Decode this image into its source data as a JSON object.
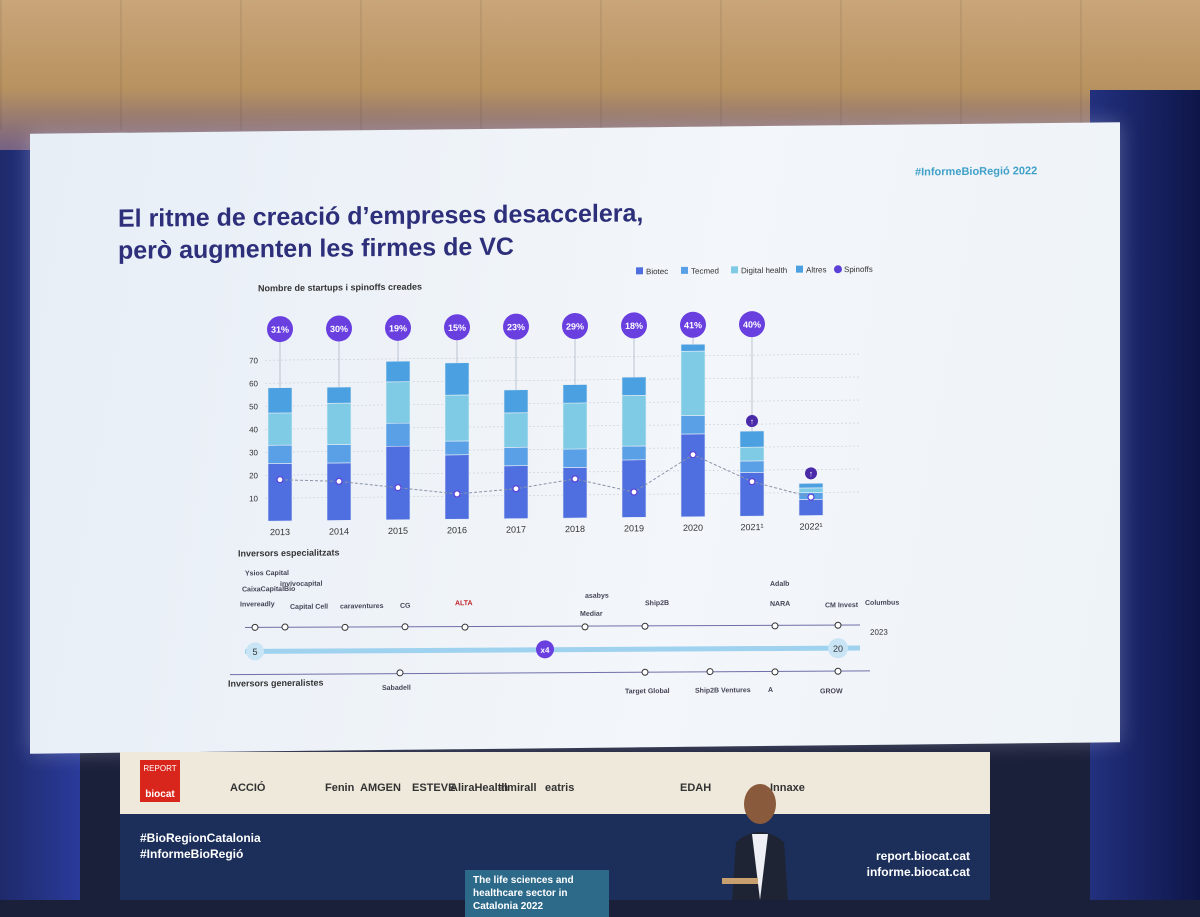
{
  "slide": {
    "hashtag": "#InformeBioRegió 2022",
    "title_line1": "El ritme de creació d’empreses desaccelera,",
    "title_line2": "però augmenten les firmes de VC"
  },
  "chart_data": {
    "type": "bar",
    "subtitle": "Nombre de startups i spinoffs creades",
    "categories": [
      "2013",
      "2014",
      "2015",
      "2016",
      "2017",
      "2018",
      "2019",
      "2020",
      "2021¹",
      "2022¹"
    ],
    "series": [
      {
        "name": "Biotec",
        "values": [
          25,
          25,
          32,
          28,
          23,
          22,
          25,
          36,
          19,
          7
        ]
      },
      {
        "name": "Tecmed",
        "values": [
          8,
          8,
          10,
          6,
          8,
          8,
          6,
          8,
          5,
          3
        ]
      },
      {
        "name": "Digital health",
        "values": [
          14,
          18,
          18,
          20,
          15,
          20,
          22,
          28,
          6,
          2
        ]
      },
      {
        "name": "Altres",
        "values": [
          11,
          7,
          9,
          14,
          10,
          8,
          8,
          3,
          7,
          2
        ]
      },
      {
        "name": "Spinoffs",
        "values": [
          18,
          17,
          14,
          11,
          13,
          17,
          11,
          27,
          15,
          8
        ]
      }
    ],
    "percent_labels": [
      "31%",
      "30%",
      "19%",
      "15%",
      "23%",
      "29%",
      "18%",
      "41%",
      "40%",
      ""
    ],
    "arrow_markers": [
      "2021¹",
      "2022¹"
    ],
    "ylim": [
      0,
      70
    ],
    "yticks": [
      10,
      20,
      30,
      40,
      50,
      60,
      70
    ],
    "colors": {
      "Biotec": "#4f6fe0",
      "Tecmed": "#5aa0e6",
      "Digital health": "#7fcbe6",
      "Altres": "#4aa0e0",
      "Spinoffs": "#5b3fd6"
    },
    "legend_position": "top-right"
  },
  "investors": {
    "specialized_label": "Inversors especialitzats",
    "generalist_label": "Inversors generalistes",
    "start_count": "5",
    "end_count": "20",
    "multiplier": "x4",
    "end_year": "2023",
    "specialized_logos": [
      "Ysios Capital",
      "CaixaCapitalBio",
      "invivocapital",
      "Invereadly",
      "Capital Cell",
      "caraventures",
      "CG",
      "ALTA",
      "asabys",
      "Mediar",
      "Ship2B",
      "Adalb",
      "NARA",
      "CM Invest",
      "Columbus"
    ],
    "generalist_logos": [
      "Sabadell",
      "Target Global",
      "Ship2B Ventures",
      "A",
      "GROW"
    ]
  },
  "banner": {
    "report_label": "REPORT",
    "brand": "biocat",
    "sponsors": [
      "ACCIÓ",
      "Fenin",
      "AMGEN",
      "ESTEVE",
      "AliraHealth",
      "almirall",
      "eatris",
      "EDAH",
      "Innaxe"
    ],
    "hashtag1": "#BioRegionCatalonia",
    "hashtag2": "#InformeBioRegió",
    "url1": "report.biocat.cat",
    "url2": "informe.biocat.cat",
    "cover_text": "The life sciences and healthcare sector in Catalonia 2022"
  }
}
